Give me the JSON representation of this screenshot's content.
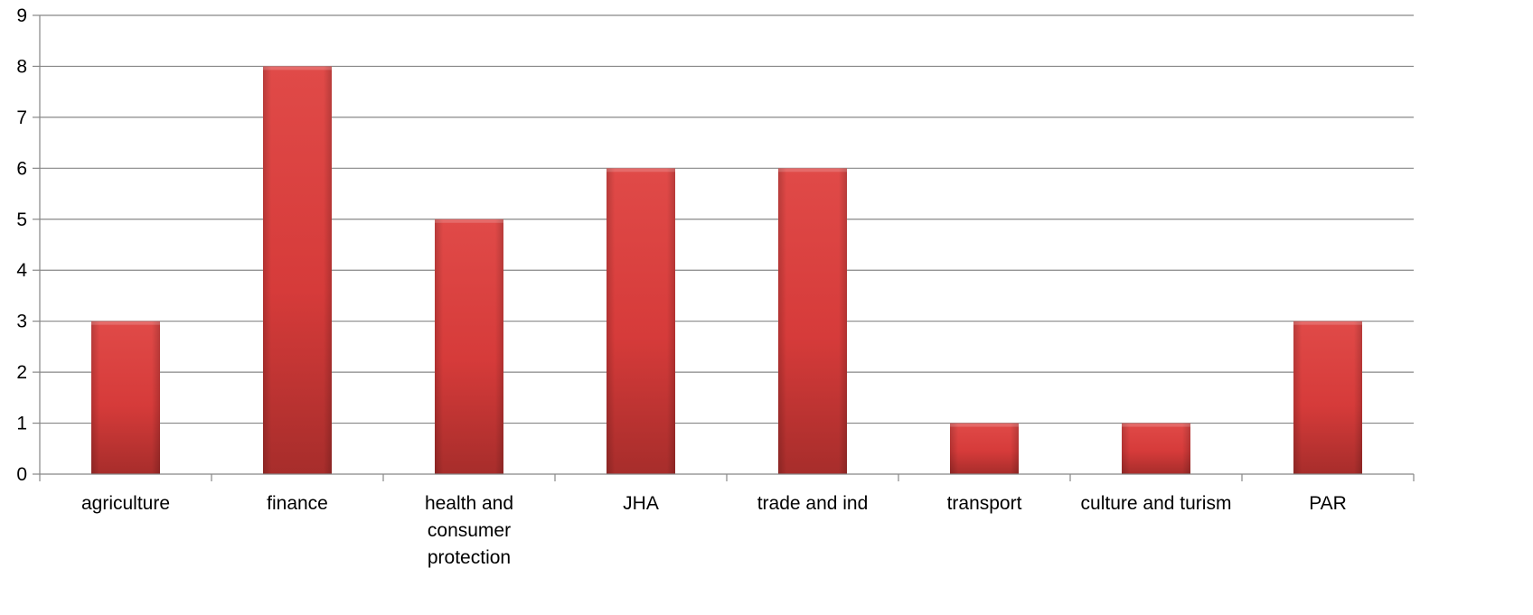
{
  "chart_data": {
    "type": "bar",
    "title": "",
    "xlabel": "",
    "ylabel": "",
    "categories": [
      "agriculture",
      "finance",
      "health and consumer protection",
      "JHA",
      "trade and ind",
      "transport",
      "culture and turism",
      "PAR"
    ],
    "category_label_lines": [
      [
        "agriculture"
      ],
      [
        "finance"
      ],
      [
        "health and",
        "consumer",
        "protection"
      ],
      [
        "JHA"
      ],
      [
        "trade and ind"
      ],
      [
        "transport"
      ],
      [
        "culture and turism"
      ],
      [
        "PAR"
      ]
    ],
    "values": [
      3,
      8,
      5,
      6,
      6,
      1,
      1,
      3
    ],
    "ylim": [
      0,
      9
    ],
    "yticks": [
      0,
      1,
      2,
      3,
      4,
      5,
      6,
      7,
      8,
      9
    ],
    "grid": true,
    "legend": "none",
    "bar_color": "#d63b3a",
    "bar_color_light": "#e04a48",
    "bar_color_dark": "#a72d2b"
  }
}
